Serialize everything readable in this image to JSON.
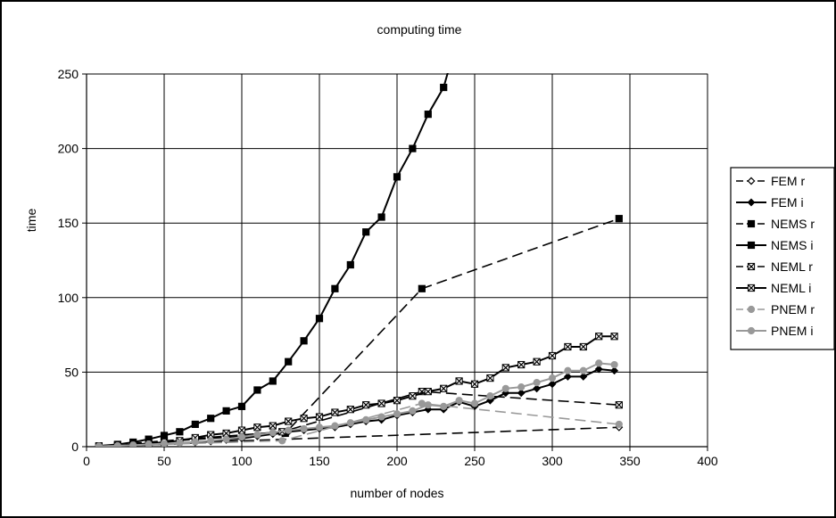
{
  "chart_data": {
    "type": "line",
    "title": "computing time",
    "xlabel": "number of nodes",
    "ylabel": "time",
    "xlim": [
      0,
      400
    ],
    "ylim": [
      0,
      250
    ],
    "xticks": [
      0,
      50,
      100,
      150,
      200,
      250,
      300,
      350,
      400
    ],
    "yticks": [
      0,
      50,
      100,
      150,
      200,
      250
    ],
    "grid": true,
    "legend_position": "right",
    "series": [
      {
        "name": "FEM r",
        "color": "#000000",
        "dash": "dashed",
        "marker": "diamond-open",
        "x": [
          8,
          343
        ],
        "y": [
          0.5,
          13
        ]
      },
      {
        "name": "FEM i",
        "color": "#000000",
        "dash": "solid",
        "marker": "diamond",
        "x": [
          8,
          20,
          30,
          40,
          50,
          60,
          70,
          80,
          90,
          100,
          110,
          120,
          130,
          140,
          150,
          160,
          170,
          180,
          190,
          200,
          210,
          220,
          230,
          240,
          250,
          260,
          270,
          280,
          290,
          300,
          310,
          320,
          330,
          340
        ],
        "y": [
          0.3,
          0.6,
          1,
          1.3,
          1.8,
          2.2,
          2.8,
          3.5,
          4.5,
          5.5,
          7,
          8.5,
          10,
          11,
          12,
          13,
          15,
          17,
          18,
          21,
          23,
          25,
          25,
          30,
          27,
          31,
          36,
          36,
          39,
          42,
          47,
          47,
          52,
          51
        ]
      },
      {
        "name": "NEMS r",
        "color": "#000000",
        "dash": "dashed",
        "marker": "square",
        "x": [
          8,
          128,
          216,
          343
        ],
        "y": [
          0.5,
          9,
          106,
          153
        ]
      },
      {
        "name": "NEMS i",
        "color": "#000000",
        "dash": "solid",
        "marker": "square",
        "x": [
          8,
          20,
          30,
          40,
          50,
          60,
          70,
          80,
          90,
          100,
          110,
          120,
          130,
          140,
          150,
          160,
          170,
          180,
          190,
          200,
          210,
          220,
          230,
          233
        ],
        "y": [
          0.5,
          1.5,
          3,
          5,
          7.5,
          10,
          15,
          19,
          24,
          27,
          38,
          44,
          57,
          71,
          86,
          106,
          122,
          144,
          154,
          181,
          200,
          223,
          241,
          252
        ]
      },
      {
        "name": "NEML r",
        "color": "#000000",
        "dash": "dashed",
        "marker": "cross",
        "x": [
          8,
          126,
          216,
          343
        ],
        "y": [
          0.5,
          10,
          37,
          28
        ]
      },
      {
        "name": "NEML i",
        "color": "#000000",
        "dash": "solid",
        "marker": "cross",
        "x": [
          8,
          20,
          30,
          40,
          50,
          60,
          70,
          80,
          90,
          100,
          110,
          120,
          130,
          140,
          150,
          160,
          170,
          180,
          190,
          200,
          210,
          220,
          230,
          240,
          250,
          260,
          270,
          280,
          290,
          300,
          310,
          320,
          330,
          340
        ],
        "y": [
          0.3,
          0.8,
          1.5,
          2.2,
          3,
          4,
          6,
          8,
          9,
          11,
          13,
          14,
          17,
          19,
          20,
          23,
          25,
          28,
          29,
          31,
          34,
          37,
          39,
          44,
          42,
          46,
          53,
          55,
          57,
          61,
          67,
          67,
          74,
          74
        ]
      },
      {
        "name": "PNEM r",
        "color": "#999999",
        "dash": "dashed",
        "marker": "circle",
        "x": [
          8,
          126,
          216,
          343
        ],
        "y": [
          0.3,
          4,
          29,
          15
        ]
      },
      {
        "name": "PNEM i",
        "color": "#999999",
        "dash": "solid",
        "marker": "circle",
        "x": [
          8,
          20,
          30,
          40,
          50,
          60,
          70,
          80,
          90,
          100,
          110,
          120,
          130,
          140,
          150,
          160,
          170,
          180,
          190,
          200,
          210,
          220,
          230,
          240,
          250,
          260,
          270,
          280,
          290,
          300,
          310,
          320,
          330,
          340
        ],
        "y": [
          0.3,
          0.6,
          1,
          1.5,
          2,
          2.5,
          3.2,
          4,
          5,
          6.5,
          8,
          9.5,
          11,
          12,
          13,
          14,
          16,
          18,
          20,
          22,
          24,
          28,
          27,
          31,
          29,
          34,
          39,
          40,
          43,
          46,
          51,
          51,
          56,
          55
        ]
      }
    ]
  }
}
